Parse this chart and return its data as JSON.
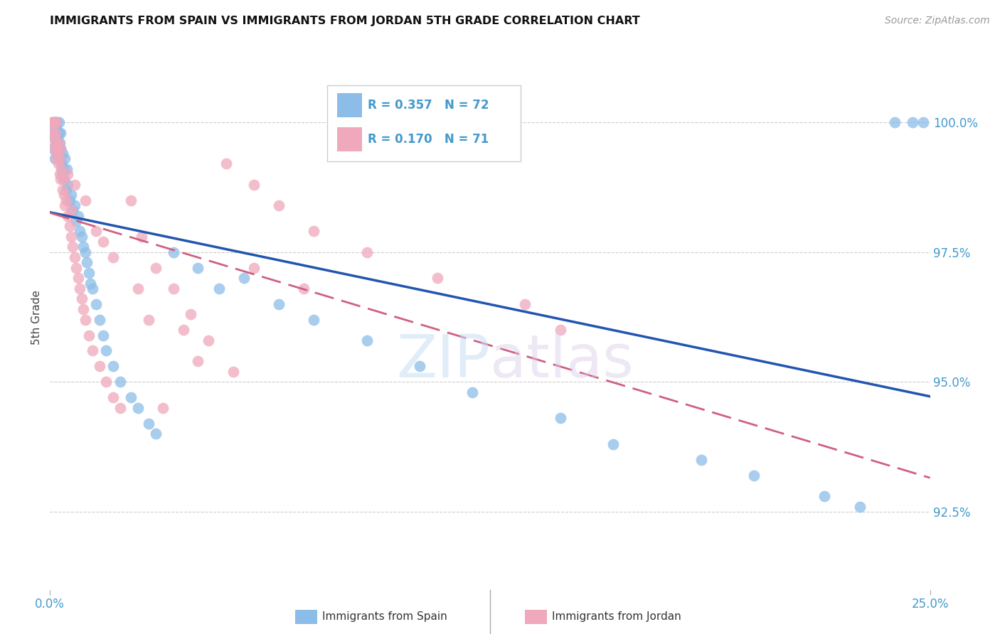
{
  "title": "IMMIGRANTS FROM SPAIN VS IMMIGRANTS FROM JORDAN 5TH GRADE CORRELATION CHART",
  "source": "Source: ZipAtlas.com",
  "ylabel": "5th Grade",
  "ytick_values": [
    92.5,
    95.0,
    97.5,
    100.0
  ],
  "xlim": [
    0.0,
    25.0
  ],
  "ylim": [
    91.0,
    101.5
  ],
  "legend_r_spain": "0.357",
  "legend_n_spain": "72",
  "legend_r_jordan": "0.170",
  "legend_n_jordan": "71",
  "color_spain": "#8bbde8",
  "color_jordan": "#f0a8bc",
  "trendline_color_spain": "#2255b0",
  "trendline_color_jordan": "#d06080",
  "watermark_zip": "ZIP",
  "watermark_atlas": "atlas",
  "spain_x": [
    0.05,
    0.08,
    0.1,
    0.12,
    0.13,
    0.14,
    0.15,
    0.15,
    0.17,
    0.18,
    0.18,
    0.2,
    0.2,
    0.22,
    0.23,
    0.25,
    0.25,
    0.27,
    0.28,
    0.3,
    0.3,
    0.32,
    0.33,
    0.35,
    0.38,
    0.4,
    0.42,
    0.45,
    0.48,
    0.5,
    0.55,
    0.6,
    0.65,
    0.7,
    0.75,
    0.8,
    0.85,
    0.9,
    0.95,
    1.0,
    1.05,
    1.1,
    1.15,
    1.2,
    1.3,
    1.4,
    1.5,
    1.6,
    1.8,
    2.0,
    2.3,
    2.5,
    2.8,
    3.0,
    3.5,
    4.2,
    4.8,
    5.5,
    6.5,
    7.5,
    9.0,
    10.5,
    12.0,
    14.5,
    16.0,
    18.5,
    20.0,
    22.0,
    23.0,
    24.0,
    24.5,
    24.8
  ],
  "spain_y": [
    99.8,
    99.5,
    100.0,
    99.7,
    100.0,
    99.3,
    99.9,
    100.0,
    99.6,
    99.8,
    100.0,
    99.4,
    100.0,
    99.7,
    99.5,
    99.8,
    100.0,
    99.3,
    99.6,
    99.5,
    99.8,
    99.2,
    99.0,
    99.4,
    99.1,
    98.9,
    99.3,
    98.7,
    99.1,
    98.8,
    98.5,
    98.6,
    98.3,
    98.4,
    98.1,
    98.2,
    97.9,
    97.8,
    97.6,
    97.5,
    97.3,
    97.1,
    96.9,
    96.8,
    96.5,
    96.2,
    95.9,
    95.6,
    95.3,
    95.0,
    94.7,
    94.5,
    94.2,
    94.0,
    97.5,
    97.2,
    96.8,
    97.0,
    96.5,
    96.2,
    95.8,
    95.3,
    94.8,
    94.3,
    93.8,
    93.5,
    93.2,
    92.8,
    92.6,
    100.0,
    100.0,
    100.0
  ],
  "jordan_x": [
    0.05,
    0.07,
    0.08,
    0.1,
    0.12,
    0.13,
    0.14,
    0.15,
    0.16,
    0.18,
    0.18,
    0.2,
    0.22,
    0.23,
    0.25,
    0.27,
    0.28,
    0.3,
    0.32,
    0.35,
    0.38,
    0.4,
    0.42,
    0.45,
    0.5,
    0.55,
    0.6,
    0.65,
    0.7,
    0.75,
    0.8,
    0.85,
    0.9,
    0.95,
    1.0,
    1.1,
    1.2,
    1.4,
    1.6,
    1.8,
    2.0,
    2.3,
    2.6,
    3.0,
    3.5,
    4.0,
    4.5,
    5.0,
    5.8,
    6.5,
    7.5,
    9.0,
    11.0,
    13.5,
    14.5,
    3.2,
    5.8,
    7.2,
    0.6,
    1.5,
    2.8,
    4.2,
    0.3,
    0.5,
    0.7,
    1.0,
    1.3,
    1.8,
    2.5,
    3.8,
    5.2
  ],
  "jordan_y": [
    100.0,
    100.0,
    99.8,
    100.0,
    99.7,
    100.0,
    99.5,
    99.8,
    99.6,
    100.0,
    99.3,
    99.5,
    99.4,
    99.2,
    99.6,
    99.0,
    99.3,
    98.9,
    99.1,
    98.7,
    98.9,
    98.6,
    98.4,
    98.5,
    98.2,
    98.0,
    97.8,
    97.6,
    97.4,
    97.2,
    97.0,
    96.8,
    96.6,
    96.4,
    96.2,
    95.9,
    95.6,
    95.3,
    95.0,
    94.7,
    94.5,
    98.5,
    97.8,
    97.2,
    96.8,
    96.3,
    95.8,
    99.2,
    98.8,
    98.4,
    97.9,
    97.5,
    97.0,
    96.5,
    96.0,
    94.5,
    97.2,
    96.8,
    98.3,
    97.7,
    96.2,
    95.4,
    99.5,
    99.0,
    98.8,
    98.5,
    97.9,
    97.4,
    96.8,
    96.0,
    95.2
  ]
}
